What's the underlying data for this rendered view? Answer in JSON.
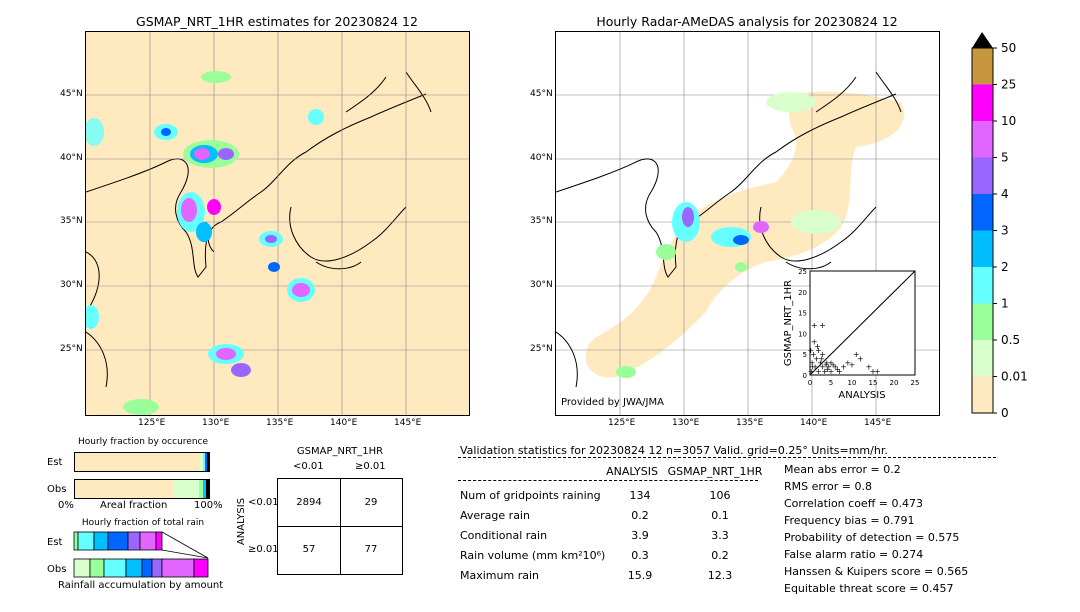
{
  "left_map": {
    "title": "GSMAP_NRT_1HR estimates for 20230824 12",
    "lon_labels": [
      "125°E",
      "130°E",
      "135°E",
      "140°E",
      "145°E"
    ],
    "lat_labels": [
      "45°N",
      "40°N",
      "35°N",
      "30°N",
      "25°N"
    ]
  },
  "right_map": {
    "title": "Hourly Radar-AMeDAS analysis for 20230824 12",
    "lon_labels": [
      "125°E",
      "130°E",
      "135°E",
      "140°E",
      "145°E"
    ],
    "lat_labels": [
      "45°N",
      "40°N",
      "35°N",
      "30°N",
      "25°N"
    ],
    "credit": "Provided by JWA/JMA"
  },
  "colorbar": {
    "labels": [
      "50",
      "25",
      "10",
      "5",
      "4",
      "3",
      "2",
      "1",
      "0.5",
      "0.01",
      "0"
    ],
    "colors": [
      "#c8963c",
      "#ff00ff",
      "#e066ff",
      "#9966ff",
      "#0066ff",
      "#00bfff",
      "#66ffff",
      "#99ff99",
      "#d9ffcc",
      "#ffe9bf"
    ]
  },
  "chart_data": [
    {
      "type": "scatter",
      "title": "",
      "xlabel": "ANALYSIS",
      "ylabel": "GSMAP_NRT_1HR",
      "xlim": [
        0,
        25
      ],
      "ylim": [
        0,
        25
      ],
      "xticks": [
        "0",
        "5",
        "10",
        "15",
        "20",
        "25"
      ],
      "yticks": [
        "0",
        "5",
        "10",
        "15",
        "20",
        "25"
      ],
      "points": [
        [
          0.5,
          3
        ],
        [
          0.8,
          5
        ],
        [
          1,
          8
        ],
        [
          1.2,
          2
        ],
        [
          1.5,
          4
        ],
        [
          2,
          6
        ],
        [
          2,
          1
        ],
        [
          2.5,
          3
        ],
        [
          3,
          2
        ],
        [
          3,
          5
        ],
        [
          3.5,
          1
        ],
        [
          4,
          3
        ],
        [
          4.5,
          2
        ],
        [
          5,
          1
        ],
        [
          5,
          3
        ],
        [
          6,
          2
        ],
        [
          7,
          1
        ],
        [
          8,
          2
        ],
        [
          1,
          12
        ],
        [
          3,
          12
        ],
        [
          11,
          5
        ],
        [
          12,
          4
        ],
        [
          15,
          1
        ],
        [
          14,
          2
        ],
        [
          16,
          1
        ],
        [
          0.3,
          1
        ],
        [
          0.6,
          2
        ],
        [
          0.2,
          6
        ],
        [
          1.8,
          7
        ],
        [
          2.8,
          4
        ],
        [
          3.8,
          2.5
        ],
        [
          4.2,
          1.5
        ],
        [
          5.5,
          2.5
        ],
        [
          6.5,
          1.5
        ],
        [
          9,
          3
        ],
        [
          10,
          2.5
        ]
      ]
    },
    {
      "type": "bar",
      "title": "Hourly fraction by occurence",
      "categories": [
        "Est",
        "Obs"
      ],
      "xlabel": "Areal fraction",
      "x_tick_labels": [
        "0%",
        "100%"
      ]
    },
    {
      "type": "bar",
      "title": "Hourly fraction of total rain",
      "categories": [
        "Est",
        "Obs"
      ],
      "xlabel": "Rainfall accumulation by amount"
    },
    {
      "type": "table",
      "title": "GSMAP_NRT_1HR",
      "col_headers": [
        "<0.01",
        "≥0.01"
      ],
      "row_axis_label": "ANALYSIS",
      "row_headers": [
        "<0.01",
        "≥0.01"
      ],
      "cells": [
        [
          "2894",
          "29"
        ],
        [
          "57",
          "77"
        ]
      ]
    }
  ],
  "validation": {
    "header": "Validation statistics for 20230824 12  n=3057 Valid. grid=0.25° Units=mm/hr.",
    "col_analysis": "ANALYSIS",
    "col_gsmap": "GSMAP_NRT_1HR",
    "rows": [
      {
        "label": "Num of gridpoints raining",
        "analysis": "134",
        "gsmap": "106"
      },
      {
        "label": "Average rain",
        "analysis": "0.2",
        "gsmap": "0.1"
      },
      {
        "label": "Conditional rain",
        "analysis": "3.9",
        "gsmap": "3.3"
      },
      {
        "label": "Rain volume (mm km²10⁶)",
        "analysis": "0.3",
        "gsmap": "0.2"
      },
      {
        "label": "Maximum rain",
        "analysis": "15.9",
        "gsmap": "12.3"
      }
    ],
    "scores": [
      "Mean abs error =    0.2",
      "RMS error =    0.8",
      "Correlation coeff =  0.473",
      "Frequency bias =  0.791",
      "Probability of detection =  0.575",
      "False alarm ratio =  0.274",
      "Hanssen & Kuipers score =  0.565",
      "Equitable threat score =  0.457"
    ]
  }
}
